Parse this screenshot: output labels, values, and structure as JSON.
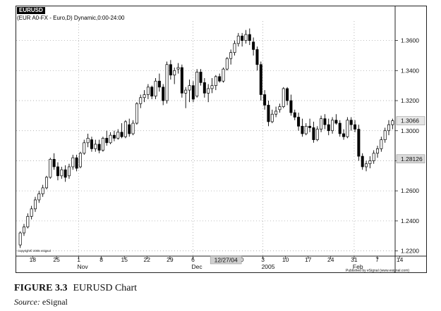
{
  "chart_data": {
    "type": "candlestick",
    "symbol_tag": "EURUSD",
    "subtitle": "(EUR A0-FX - Euro,D) Dynamic,0:00-24:00",
    "y_range": [
      1.2175,
      1.3715
    ],
    "y_ticks": [
      1.22,
      1.24,
      1.26,
      1.28,
      1.3,
      1.32,
      1.34,
      1.36
    ],
    "y_tick_labels": [
      "1.2200",
      "1.2400",
      "1.2600",
      "1.2800",
      "1.3000",
      "1.3200",
      "1.3400",
      "1.3600"
    ],
    "price_labels": [
      {
        "text": "1.3066",
        "value": 1.3066
      },
      {
        "text": "1.28126",
        "value": 1.28126
      }
    ],
    "x_day_labels": [
      "18",
      "25",
      "1",
      "8",
      "15",
      "22",
      "29",
      "6",
      "13",
      "20",
      "3",
      "10",
      "17",
      "24",
      "31",
      "7",
      "14"
    ],
    "x_month_labels": [
      "Nov",
      "Dec",
      "2005",
      "Feb"
    ],
    "cursor_date": "12/27/04",
    "copyright": "Copyright© 2005 eSignal",
    "publisher": "Published by eSignal (www.esignal.com)",
    "candles": [
      [
        1.224,
        1.233,
        1.222,
        1.232
      ],
      [
        1.232,
        1.238,
        1.23,
        1.236
      ],
      [
        1.236,
        1.245,
        1.235,
        1.243
      ],
      [
        1.243,
        1.25,
        1.241,
        1.248
      ],
      [
        1.248,
        1.256,
        1.246,
        1.254
      ],
      [
        1.254,
        1.26,
        1.252,
        1.258
      ],
      [
        1.258,
        1.264,
        1.256,
        1.262
      ],
      [
        1.262,
        1.27,
        1.261,
        1.269
      ],
      [
        1.269,
        1.282,
        1.268,
        1.281
      ],
      [
        1.281,
        1.285,
        1.274,
        1.276
      ],
      [
        1.276,
        1.279,
        1.267,
        1.27
      ],
      [
        1.27,
        1.276,
        1.268,
        1.274
      ],
      [
        1.274,
        1.277,
        1.266,
        1.269
      ],
      [
        1.27,
        1.278,
        1.268,
        1.276
      ],
      [
        1.276,
        1.284,
        1.274,
        1.282
      ],
      [
        1.282,
        1.284,
        1.273,
        1.275
      ],
      [
        1.276,
        1.286,
        1.275,
        1.285
      ],
      [
        1.285,
        1.294,
        1.284,
        1.292
      ],
      [
        1.292,
        1.298,
        1.289,
        1.295
      ],
      [
        1.294,
        1.296,
        1.286,
        1.288
      ],
      [
        1.288,
        1.294,
        1.286,
        1.291
      ],
      [
        1.291,
        1.294,
        1.285,
        1.287
      ],
      [
        1.287,
        1.296,
        1.286,
        1.295
      ],
      [
        1.295,
        1.3,
        1.29,
        1.292
      ],
      [
        1.292,
        1.299,
        1.291,
        1.297
      ],
      [
        1.297,
        1.3,
        1.293,
        1.295
      ],
      [
        1.295,
        1.301,
        1.294,
        1.299
      ],
      [
        1.299,
        1.305,
        1.295,
        1.296
      ],
      [
        1.296,
        1.307,
        1.295,
        1.306
      ],
      [
        1.304,
        1.308,
        1.296,
        1.298
      ],
      [
        1.298,
        1.307,
        1.297,
        1.305
      ],
      [
        1.305,
        1.319,
        1.304,
        1.318
      ],
      [
        1.318,
        1.324,
        1.315,
        1.322
      ],
      [
        1.322,
        1.327,
        1.319,
        1.324
      ],
      [
        1.324,
        1.331,
        1.321,
        1.329
      ],
      [
        1.329,
        1.33,
        1.321,
        1.323
      ],
      [
        1.323,
        1.335,
        1.321,
        1.333
      ],
      [
        1.333,
        1.338,
        1.326,
        1.329
      ],
      [
        1.329,
        1.331,
        1.317,
        1.32
      ],
      [
        1.32,
        1.346,
        1.318,
        1.344
      ],
      [
        1.344,
        1.347,
        1.334,
        1.337
      ],
      [
        1.337,
        1.342,
        1.331,
        1.34
      ],
      [
        1.341,
        1.345,
        1.338,
        1.342
      ],
      [
        1.342,
        1.344,
        1.322,
        1.325
      ],
      [
        1.325,
        1.329,
        1.315,
        1.327
      ],
      [
        1.327,
        1.334,
        1.319,
        1.33
      ],
      [
        1.33,
        1.333,
        1.319,
        1.321
      ],
      [
        1.323,
        1.341,
        1.322,
        1.339
      ],
      [
        1.339,
        1.341,
        1.33,
        1.332
      ],
      [
        1.332,
        1.335,
        1.322,
        1.325
      ],
      [
        1.325,
        1.331,
        1.319,
        1.328
      ],
      [
        1.328,
        1.335,
        1.325,
        1.33
      ],
      [
        1.33,
        1.337,
        1.327,
        1.336
      ],
      [
        1.336,
        1.338,
        1.332,
        1.333
      ],
      [
        1.333,
        1.342,
        1.332,
        1.341
      ],
      [
        1.341,
        1.349,
        1.34,
        1.348
      ],
      [
        1.348,
        1.354,
        1.344,
        1.352
      ],
      [
        1.352,
        1.36,
        1.35,
        1.358
      ],
      [
        1.358,
        1.365,
        1.356,
        1.363
      ],
      [
        1.363,
        1.365,
        1.356,
        1.36
      ],
      [
        1.36,
        1.367,
        1.358,
        1.364
      ],
      [
        1.364,
        1.368,
        1.357,
        1.36
      ],
      [
        1.359,
        1.362,
        1.35,
        1.354
      ],
      [
        1.354,
        1.356,
        1.34,
        1.344
      ],
      [
        1.344,
        1.346,
        1.32,
        1.324
      ],
      [
        1.324,
        1.327,
        1.314,
        1.317
      ],
      [
        1.317,
        1.32,
        1.303,
        1.306
      ],
      [
        1.306,
        1.314,
        1.305,
        1.311
      ],
      [
        1.311,
        1.316,
        1.309,
        1.313
      ],
      [
        1.314,
        1.318,
        1.312,
        1.316
      ],
      [
        1.316,
        1.329,
        1.315,
        1.328
      ],
      [
        1.328,
        1.329,
        1.317,
        1.32
      ],
      [
        1.32,
        1.324,
        1.31,
        1.312
      ],
      [
        1.312,
        1.314,
        1.307,
        1.309
      ],
      [
        1.309,
        1.312,
        1.3,
        1.303
      ],
      [
        1.303,
        1.308,
        1.296,
        1.298
      ],
      [
        1.298,
        1.305,
        1.297,
        1.303
      ],
      [
        1.303,
        1.308,
        1.299,
        1.302
      ],
      [
        1.302,
        1.306,
        1.292,
        1.294
      ],
      [
        1.294,
        1.303,
        1.293,
        1.301
      ],
      [
        1.301,
        1.31,
        1.299,
        1.308
      ],
      [
        1.308,
        1.311,
        1.301,
        1.304
      ],
      [
        1.304,
        1.308,
        1.297,
        1.3
      ],
      [
        1.3,
        1.309,
        1.298,
        1.307
      ],
      [
        1.307,
        1.311,
        1.304,
        1.305
      ],
      [
        1.305,
        1.307,
        1.296,
        1.298
      ],
      [
        1.298,
        1.301,
        1.294,
        1.296
      ],
      [
        1.296,
        1.309,
        1.295,
        1.307
      ],
      [
        1.307,
        1.309,
        1.3,
        1.304
      ],
      [
        1.304,
        1.307,
        1.299,
        1.301
      ],
      [
        1.301,
        1.304,
        1.28,
        1.283
      ],
      [
        1.283,
        1.285,
        1.274,
        1.276
      ],
      [
        1.276,
        1.28,
        1.273,
        1.278
      ],
      [
        1.278,
        1.283,
        1.275,
        1.28
      ],
      [
        1.28,
        1.287,
        1.278,
        1.285
      ],
      [
        1.285,
        1.29,
        1.282,
        1.288
      ],
      [
        1.288,
        1.296,
        1.286,
        1.294
      ],
      [
        1.294,
        1.302,
        1.292,
        1.3
      ],
      [
        1.3,
        1.307,
        1.297,
        1.304
      ],
      [
        1.304,
        1.308,
        1.301,
        1.3066
      ]
    ]
  },
  "figure": {
    "label": "FIGURE 3.3",
    "title": "EURUSD Chart",
    "source_label": "Source:",
    "source_value": "eSignal"
  }
}
